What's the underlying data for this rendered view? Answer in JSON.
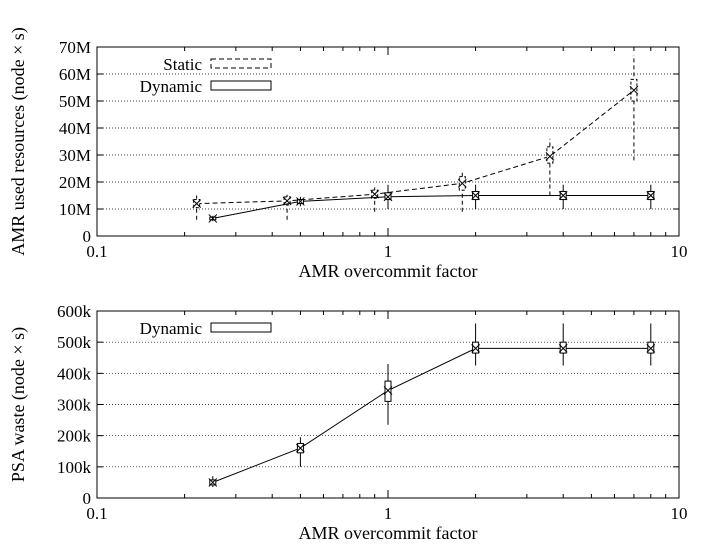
{
  "chart_data": [
    {
      "type": "line",
      "xscale": "log",
      "xlim": [
        0.1,
        10
      ],
      "ylim": [
        0,
        70
      ],
      "xlabel": "AMR overcommit factor",
      "ylabel": "AMR used resources (node × s)",
      "xticks": [
        0.1,
        1,
        10
      ],
      "xtick_labels": [
        "0.1",
        "1",
        "10"
      ],
      "yticks": [
        0,
        10,
        20,
        30,
        40,
        50,
        60,
        70
      ],
      "ytick_labels": [
        "0",
        "10M",
        "20M",
        "30M",
        "40M",
        "50M",
        "60M",
        "70M"
      ],
      "grid": "horizontal dotted",
      "legend_position": "top-left",
      "series": [
        {
          "name": "Static",
          "style": "dashed",
          "x": [
            0.22,
            0.45,
            0.9,
            1.8,
            3.6,
            7.0
          ],
          "y": [
            12,
            13,
            15.5,
            19.5,
            29.5,
            54
          ],
          "box": [
            [
              10.5,
              13.5
            ],
            [
              11.5,
              14.5
            ],
            [
              14,
              17
            ],
            [
              17,
              22
            ],
            [
              27,
              33
            ],
            [
              50,
              58
            ]
          ],
          "whisker": [
            [
              6,
              15
            ],
            [
              6,
              16
            ],
            [
              9,
              18
            ],
            [
              9,
              24
            ],
            [
              15,
              36
            ],
            [
              28,
              67
            ]
          ]
        },
        {
          "name": "Dynamic",
          "style": "solid",
          "x": [
            0.25,
            0.5,
            1,
            2,
            4,
            8
          ],
          "y": [
            6.5,
            12.8,
            14.5,
            15,
            15,
            15
          ],
          "box": [
            [
              6,
              7
            ],
            [
              12,
              13.5
            ],
            [
              13.5,
              16
            ],
            [
              13.5,
              16.5
            ],
            [
              13.5,
              16.5
            ],
            [
              13.5,
              16.5
            ]
          ],
          "whisker": [
            [
              5.5,
              7.5
            ],
            [
              11,
              14.5
            ],
            [
              10,
              19
            ],
            [
              10,
              19
            ],
            [
              10,
              19
            ],
            [
              10,
              19
            ]
          ]
        }
      ]
    },
    {
      "type": "line",
      "xscale": "log",
      "xlim": [
        0.1,
        10
      ],
      "ylim": [
        0,
        600
      ],
      "xlabel": "AMR overcommit factor",
      "ylabel": "PSA waste (node × s)",
      "xticks": [
        0.1,
        1,
        10
      ],
      "xtick_labels": [
        "0.1",
        "1",
        "10"
      ],
      "yticks": [
        0,
        100,
        200,
        300,
        400,
        500,
        600
      ],
      "ytick_labels": [
        "0",
        "100k",
        "200k",
        "300k",
        "400k",
        "500k",
        "600k"
      ],
      "grid": "horizontal dotted",
      "legend_position": "top-left",
      "series": [
        {
          "name": "Dynamic",
          "style": "solid",
          "x": [
            0.25,
            0.5,
            1,
            2,
            4,
            8
          ],
          "y": [
            50,
            160,
            345,
            480,
            480,
            480
          ],
          "box": [
            [
              42,
              58
            ],
            [
              145,
              175
            ],
            [
              310,
              375
            ],
            [
              465,
              500
            ],
            [
              465,
              500
            ],
            [
              465,
              500
            ]
          ],
          "whisker": [
            [
              35,
              70
            ],
            [
              100,
              195
            ],
            [
              235,
              430
            ],
            [
              425,
              560
            ],
            [
              425,
              560
            ],
            [
              425,
              560
            ]
          ]
        }
      ]
    }
  ]
}
